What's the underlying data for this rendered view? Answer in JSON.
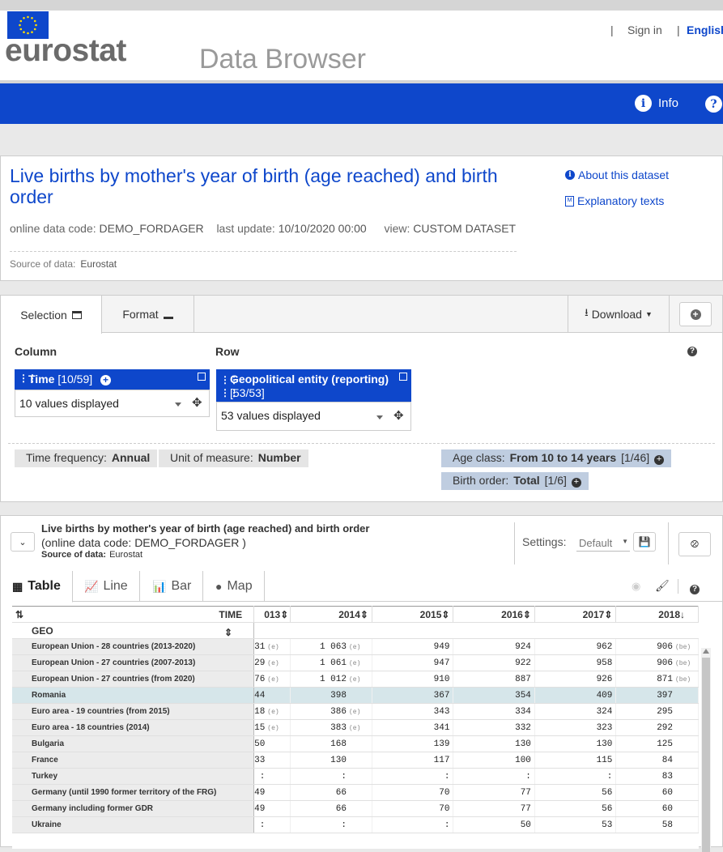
{
  "header": {
    "logo_text": "eurostat",
    "app_title": "Data Browser",
    "separator": "|",
    "sign_in": "Sign in",
    "language": "English"
  },
  "nav": {
    "info_label": "Info"
  },
  "dataset": {
    "title": "Live births by mother's year of birth (age reached) and birth order",
    "online_code_label": "online data code:",
    "online_code": "DEMO_FORDAGER",
    "last_update_label": "last update:",
    "last_update": "10/10/2020 00:00",
    "view_label": "view:",
    "view": "CUSTOM DATASET",
    "source_label": "Source of data:",
    "source": "Eurostat",
    "about_link": "About this dataset",
    "explanatory_link": "Explanatory texts"
  },
  "selection": {
    "tab_selection": "Selection",
    "tab_format": "Format",
    "download_label": "Download",
    "column_label": "Column",
    "row_label": "Row",
    "time_dim_name": "Time",
    "time_dim_count": "[10/59]",
    "time_dd_value": "10 values displayed",
    "geo_dim_name": "Geopolitical entity (reporting)",
    "geo_dim_count": "[53/53]",
    "geo_dd_value": "53 values displayed",
    "filters": [
      {
        "label": "Time frequency:",
        "value": "Annual"
      },
      {
        "label": "Unit of measure:",
        "value": "Number"
      }
    ],
    "blue_filters": [
      {
        "label": "Age class:",
        "value": "From 10 to 14 years",
        "count": "[1/46]"
      },
      {
        "label": "Birth order:",
        "value": "Total",
        "count": "[1/6]"
      }
    ]
  },
  "results": {
    "title": "Live births by mother's year of birth (age reached) and birth order",
    "code_line": "(online data code: DEMO_FORDAGER )",
    "source_label": "Source of data:",
    "source": "Eurostat",
    "settings_label": "Settings:",
    "settings_value": "Default",
    "tabs": [
      "Table",
      "Line",
      "Bar",
      "Map"
    ]
  },
  "table": {
    "time_label": "TIME",
    "geo_label": "GEO",
    "years": [
      "013",
      "2014",
      "2015",
      "2016",
      "2017",
      "2018"
    ],
    "rows": [
      {
        "geo": "European Union - 28 countries (2013-2020)",
        "vals": [
          [
            "31",
            "(e)"
          ],
          [
            "1 063",
            "(e)"
          ],
          [
            "949",
            ""
          ],
          [
            "924",
            ""
          ],
          [
            "962",
            ""
          ],
          [
            "906",
            "(be)"
          ]
        ]
      },
      {
        "geo": "European Union - 27 countries (2007-2013)",
        "vals": [
          [
            "29",
            "(e)"
          ],
          [
            "1 061",
            "(e)"
          ],
          [
            "947",
            ""
          ],
          [
            "922",
            ""
          ],
          [
            "958",
            ""
          ],
          [
            "906",
            "(be)"
          ]
        ]
      },
      {
        "geo": "European Union - 27 countries (from 2020)",
        "vals": [
          [
            "76",
            "(e)"
          ],
          [
            "1 012",
            "(e)"
          ],
          [
            "910",
            ""
          ],
          [
            "887",
            ""
          ],
          [
            "926",
            ""
          ],
          [
            "871",
            "(be)"
          ]
        ]
      },
      {
        "geo": "Romania",
        "vals": [
          [
            "44",
            ""
          ],
          [
            "398",
            ""
          ],
          [
            "367",
            ""
          ],
          [
            "354",
            ""
          ],
          [
            "409",
            ""
          ],
          [
            "397",
            ""
          ]
        ],
        "highlight": true
      },
      {
        "geo": "Euro area - 19 countries (from 2015)",
        "vals": [
          [
            "18",
            "(e)"
          ],
          [
            "386",
            "(e)"
          ],
          [
            "343",
            ""
          ],
          [
            "334",
            ""
          ],
          [
            "324",
            ""
          ],
          [
            "295",
            ""
          ]
        ]
      },
      {
        "geo": "Euro area - 18 countries (2014)",
        "vals": [
          [
            "15",
            "(e)"
          ],
          [
            "383",
            "(e)"
          ],
          [
            "341",
            ""
          ],
          [
            "332",
            ""
          ],
          [
            "323",
            ""
          ],
          [
            "292",
            ""
          ]
        ]
      },
      {
        "geo": "Bulgaria",
        "vals": [
          [
            "50",
            ""
          ],
          [
            "168",
            ""
          ],
          [
            "139",
            ""
          ],
          [
            "130",
            ""
          ],
          [
            "130",
            ""
          ],
          [
            "125",
            ""
          ]
        ]
      },
      {
        "geo": "France",
        "vals": [
          [
            "33",
            ""
          ],
          [
            "130",
            ""
          ],
          [
            "117",
            ""
          ],
          [
            "100",
            ""
          ],
          [
            "115",
            ""
          ],
          [
            "84",
            ""
          ]
        ]
      },
      {
        "geo": "Turkey",
        "vals": [
          [
            ":",
            ""
          ],
          [
            ":",
            ""
          ],
          [
            ":",
            ""
          ],
          [
            ":",
            ""
          ],
          [
            ":",
            ""
          ],
          [
            "83",
            ""
          ]
        ]
      },
      {
        "geo": "Germany (until 1990 former territory of the FRG)",
        "vals": [
          [
            "49",
            ""
          ],
          [
            "66",
            ""
          ],
          [
            "70",
            ""
          ],
          [
            "77",
            ""
          ],
          [
            "56",
            ""
          ],
          [
            "60",
            ""
          ]
        ]
      },
      {
        "geo": "Germany including former GDR",
        "vals": [
          [
            "49",
            ""
          ],
          [
            "66",
            ""
          ],
          [
            "70",
            ""
          ],
          [
            "77",
            ""
          ],
          [
            "56",
            ""
          ],
          [
            "60",
            ""
          ]
        ]
      },
      {
        "geo": "Ukraine",
        "vals": [
          [
            ":",
            ""
          ],
          [
            ":",
            ""
          ],
          [
            ":",
            ""
          ],
          [
            "50",
            ""
          ],
          [
            "53",
            ""
          ],
          [
            "58",
            ""
          ]
        ]
      }
    ]
  }
}
